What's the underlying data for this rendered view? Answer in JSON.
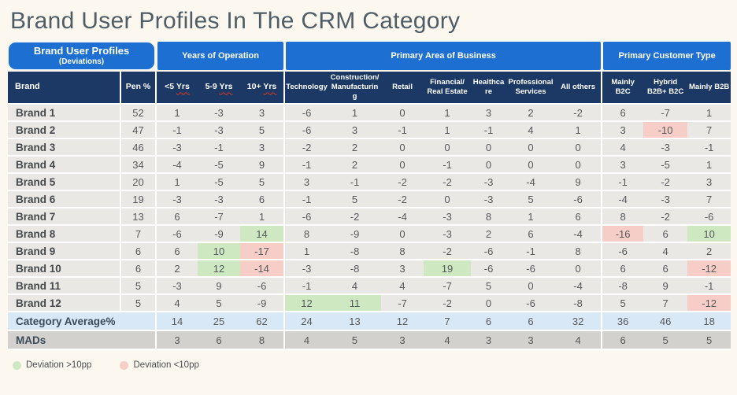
{
  "title": "Brand User Profiles In The CRM Category",
  "corner": {
    "title": "Brand User Profiles",
    "subtitle": "(Deviations)"
  },
  "chart_data": {
    "type": "table",
    "title": "Brand User Profiles In The CRM Category",
    "column_groups": [
      {
        "label": "Years of Operation",
        "span": 3
      },
      {
        "label": "Primary Area of Business",
        "span": 7
      },
      {
        "label": "Primary Customer Type",
        "span": 3
      }
    ],
    "columns": [
      "Brand",
      "Pen %",
      "<5 Yrs",
      "5-9 Yrs",
      "10+ Yrs",
      "Technology",
      "Construction/\nManufacturing",
      "Retail",
      "Financial/\nReal Estate",
      "Healthcare",
      "Professional\nServices",
      "All others",
      "Mainly B2C",
      "Hybrid\nB2B+ B2C",
      "Mainly B2B"
    ],
    "rows": [
      {
        "brand": "Brand 1",
        "values": [
          52,
          1,
          -3,
          3,
          -6,
          1,
          0,
          1,
          3,
          2,
          -2,
          6,
          -7,
          1
        ],
        "hl": {}
      },
      {
        "brand": "Brand 2",
        "values": [
          47,
          -1,
          -3,
          5,
          -6,
          3,
          -1,
          1,
          -1,
          4,
          1,
          3,
          -10,
          7
        ],
        "hl": {
          "12": "r"
        }
      },
      {
        "brand": "Brand 3",
        "values": [
          46,
          -3,
          -1,
          3,
          -2,
          2,
          0,
          0,
          0,
          0,
          0,
          4,
          -3,
          -1
        ],
        "hl": {}
      },
      {
        "brand": "Brand 4",
        "values": [
          34,
          -4,
          -5,
          9,
          -1,
          2,
          0,
          -1,
          0,
          0,
          0,
          3,
          -5,
          1
        ],
        "hl": {}
      },
      {
        "brand": "Brand 5",
        "values": [
          20,
          1,
          -5,
          5,
          3,
          -1,
          -2,
          -2,
          -3,
          -4,
          9,
          -1,
          -2,
          3
        ],
        "hl": {}
      },
      {
        "brand": "Brand 6",
        "values": [
          19,
          -3,
          -3,
          6,
          -1,
          5,
          -2,
          0,
          -3,
          5,
          -6,
          -4,
          -3,
          7
        ],
        "hl": {}
      },
      {
        "brand": "Brand 7",
        "values": [
          13,
          6,
          -7,
          1,
          -6,
          -2,
          -4,
          -3,
          8,
          1,
          6,
          8,
          -2,
          -6
        ],
        "hl": {}
      },
      {
        "brand": "Brand 8",
        "values": [
          7,
          -6,
          -9,
          14,
          8,
          -9,
          0,
          -3,
          2,
          6,
          -4,
          -16,
          6,
          10
        ],
        "hl": {
          "3": "g",
          "11": "r",
          "13": "g"
        }
      },
      {
        "brand": "Brand 9",
        "values": [
          6,
          6,
          10,
          -17,
          1,
          -8,
          8,
          -2,
          -6,
          -1,
          8,
          -6,
          4,
          2
        ],
        "hl": {
          "2": "g",
          "3": "r"
        }
      },
      {
        "brand": "Brand 10",
        "values": [
          6,
          2,
          12,
          -14,
          -3,
          -8,
          3,
          19,
          -6,
          -6,
          0,
          6,
          6,
          -12
        ],
        "hl": {
          "2": "g",
          "3": "r",
          "7": "g",
          "13": "r"
        }
      },
      {
        "brand": "Brand 11",
        "values": [
          5,
          -3,
          9,
          -6,
          -1,
          4,
          4,
          -7,
          5,
          0,
          -4,
          -8,
          9,
          -1
        ],
        "hl": {}
      },
      {
        "brand": "Brand 12",
        "values": [
          5,
          4,
          5,
          -9,
          12,
          11,
          -7,
          -2,
          0,
          -6,
          -8,
          5,
          7,
          -12
        ],
        "hl": {
          "4": "g",
          "5": "g",
          "13": "r"
        }
      }
    ],
    "footer_rows": [
      {
        "label": "Category Average%",
        "values": [
          14,
          25,
          62,
          24,
          13,
          12,
          7,
          6,
          6,
          32,
          36,
          46,
          18
        ]
      },
      {
        "label": "MADs",
        "values": [
          3,
          6,
          8,
          4,
          5,
          3,
          4,
          3,
          3,
          4,
          6,
          5,
          5
        ]
      }
    ]
  },
  "legend": [
    {
      "label": "Deviation >10pp",
      "color_key": "hl_green"
    },
    {
      "label": "Deviation <10pp",
      "color_key": "hl_red"
    }
  ],
  "colors": {
    "bg": "#FCF8F0",
    "blue": "#1D6FD2",
    "navy": "#1C3966",
    "row_gray": "#E9E8E4",
    "avg_blue": "#D9E8F7",
    "mads_gray": "#D2D1CD",
    "hl_green": "#CEE9C2",
    "hl_red": "#F7CEC7",
    "sep": "#FFFFFF",
    "text": "#56595B",
    "title": "#4E5D66"
  }
}
